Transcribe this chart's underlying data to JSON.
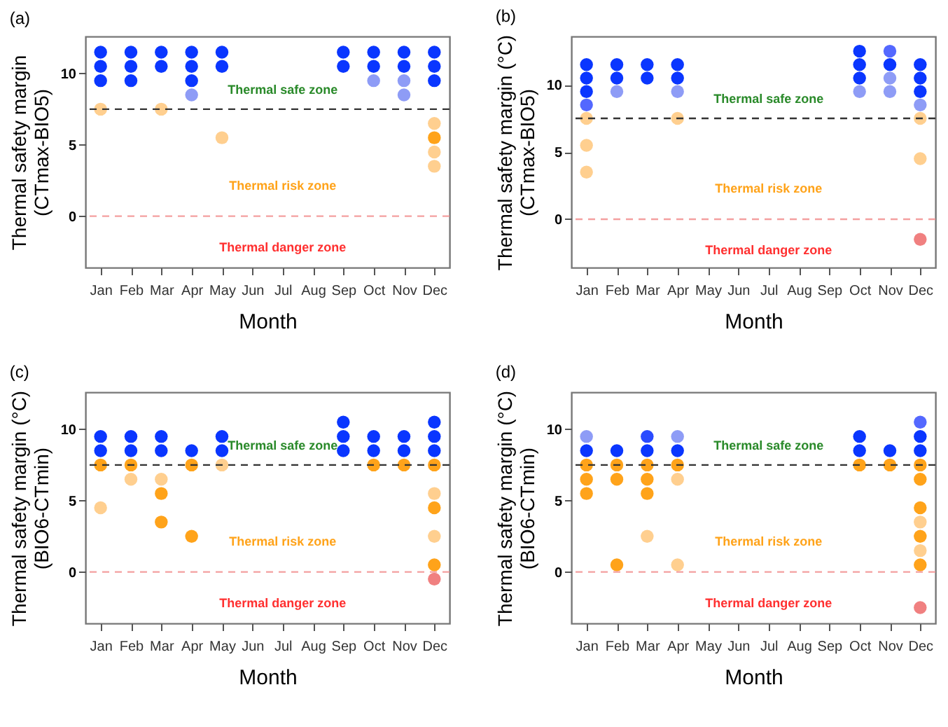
{
  "chart_data": [
    {
      "type": "scatter",
      "title": "(a)",
      "xlabel": "Month",
      "ylabel": "Thermal safety margin\n(CTmax-BIO5)",
      "categories": [
        "Jan",
        "Feb",
        "Mar",
        "Apr",
        "May",
        "Jun",
        "Jul",
        "Aug",
        "Sep",
        "Oct",
        "Nov",
        "Dec"
      ],
      "ylim": [
        -3.6,
        12.6
      ],
      "yticks": [
        0,
        5,
        10
      ],
      "grid": false,
      "marker": "circle",
      "series": [
        {
          "color": "#0a36ff",
          "x": [
            "Jan",
            "Jan",
            "Jan",
            "Feb",
            "Feb",
            "Feb",
            "Mar",
            "Mar",
            "Apr",
            "Apr",
            "Apr",
            "May",
            "May",
            "Sep",
            "Sep",
            "Oct",
            "Oct",
            "Nov",
            "Nov",
            "Dec",
            "Dec",
            "Dec"
          ],
          "values": [
            11.5,
            10.5,
            9.5,
            11.5,
            10.5,
            9.5,
            11.5,
            10.5,
            11.5,
            10.5,
            9.5,
            11.5,
            10.5,
            11.5,
            10.5,
            11.5,
            10.5,
            11.5,
            10.5,
            11.5,
            10.5,
            9.5
          ]
        },
        {
          "color": "#8e9cf6",
          "x": [
            "Apr",
            "Oct",
            "Nov",
            "Nov"
          ],
          "values": [
            8.5,
            9.5,
            9.5,
            8.5
          ]
        },
        {
          "color": "#ffa31a",
          "x": [
            "Dec"
          ],
          "values": [
            5.5
          ]
        },
        {
          "color": "#ffcf8f",
          "x": [
            "Jan",
            "Mar",
            "May",
            "Dec",
            "Dec",
            "Dec"
          ],
          "values": [
            7.5,
            7.5,
            5.5,
            6.5,
            4.5,
            3.5
          ]
        }
      ],
      "ref_lines": [
        {
          "axis": "y",
          "value": 7.5,
          "color": "#333333",
          "line_style": "dashed"
        },
        {
          "axis": "y",
          "value": 0,
          "color": "#f4a0a0",
          "line_style": "dashed"
        }
      ],
      "annotations": [
        "Thermal safe zone",
        "Thermal risk zone",
        "Thermal danger zone"
      ]
    },
    {
      "type": "scatter",
      "title": "(b)",
      "xlabel": "Month",
      "ylabel": "Thermal safety margin (°C)\n(CTmax-BIO5)",
      "categories": [
        "Jan",
        "Feb",
        "Mar",
        "Apr",
        "May",
        "Jun",
        "Jul",
        "Aug",
        "Sep",
        "Oct",
        "Nov",
        "Dec"
      ],
      "ylim": [
        -3.6,
        13.6
      ],
      "yticks": [
        0,
        5,
        10
      ],
      "grid": false,
      "marker": "circle",
      "series": [
        {
          "color": "#0a36ff",
          "x": [
            "Jan",
            "Jan",
            "Jan",
            "Feb",
            "Feb",
            "Mar",
            "Mar",
            "Apr",
            "Apr",
            "Oct",
            "Oct",
            "Oct",
            "Nov",
            "Dec",
            "Dec",
            "Dec"
          ],
          "values": [
            11.5,
            10.5,
            9.5,
            11.5,
            10.5,
            11.5,
            10.5,
            11.5,
            10.5,
            12.5,
            11.5,
            10.5,
            11.5,
            11.5,
            10.5,
            9.5
          ]
        },
        {
          "color": "#5468ff",
          "x": [
            "Jan",
            "Nov"
          ],
          "values": [
            8.5,
            12.5
          ]
        },
        {
          "color": "#8e9cf6",
          "x": [
            "Feb",
            "Apr",
            "Oct",
            "Nov",
            "Nov",
            "Dec"
          ],
          "values": [
            9.5,
            9.5,
            9.5,
            10.5,
            9.5,
            8.5
          ]
        },
        {
          "color": "#ffcf8f",
          "x": [
            "Jan",
            "Jan",
            "Jan",
            "Apr",
            "Dec",
            "Dec"
          ],
          "values": [
            7.5,
            5.5,
            3.5,
            7.5,
            7.5,
            4.5
          ]
        },
        {
          "color": "#f08080",
          "x": [
            "Dec"
          ],
          "values": [
            -1.5
          ]
        }
      ],
      "ref_lines": [
        {
          "axis": "y",
          "value": 7.5,
          "color": "#333333",
          "line_style": "dashed"
        },
        {
          "axis": "y",
          "value": 0,
          "color": "#f4a0a0",
          "line_style": "dashed"
        }
      ],
      "annotations": [
        "Thermal safe zone",
        "Thermal risk zone",
        "Thermal danger zone"
      ]
    },
    {
      "type": "scatter",
      "title": "(c)",
      "xlabel": "Month",
      "ylabel": "Thermal safety margin (°C)\n(BIO6-CTmin)",
      "categories": [
        "Jan",
        "Feb",
        "Mar",
        "Apr",
        "May",
        "Jun",
        "Jul",
        "Aug",
        "Sep",
        "Oct",
        "Nov",
        "Dec"
      ],
      "ylim": [
        -3.6,
        12.6
      ],
      "yticks": [
        0,
        5,
        10
      ],
      "grid": false,
      "marker": "circle",
      "series": [
        {
          "color": "#0a36ff",
          "x": [
            "Jan",
            "Jan",
            "Feb",
            "Feb",
            "Mar",
            "Mar",
            "Apr",
            "May",
            "May",
            "Sep",
            "Sep",
            "Sep",
            "Oct",
            "Oct",
            "Nov",
            "Nov",
            "Dec",
            "Dec",
            "Dec"
          ],
          "values": [
            9.5,
            8.5,
            9.5,
            8.5,
            9.5,
            8.5,
            8.5,
            9.5,
            8.5,
            10.5,
            9.5,
            8.5,
            9.5,
            8.5,
            9.5,
            8.5,
            10.5,
            9.5,
            8.5
          ]
        },
        {
          "color": "#ffa31a",
          "x": [
            "Jan",
            "Feb",
            "Mar",
            "Mar",
            "Apr",
            "Apr",
            "Oct",
            "Nov",
            "Dec",
            "Dec",
            "Dec"
          ],
          "values": [
            7.5,
            7.5,
            5.5,
            3.5,
            7.5,
            2.5,
            7.5,
            7.5,
            7.5,
            4.5,
            0.5
          ]
        },
        {
          "color": "#ffcf8f",
          "x": [
            "Jan",
            "Feb",
            "Mar",
            "May",
            "Dec",
            "Dec"
          ],
          "values": [
            4.5,
            6.5,
            6.5,
            7.5,
            5.5,
            2.5
          ]
        },
        {
          "color": "#f08080",
          "x": [
            "Dec"
          ],
          "values": [
            -0.5
          ]
        }
      ],
      "ref_lines": [
        {
          "axis": "y",
          "value": 7.5,
          "color": "#333333",
          "line_style": "dashed"
        },
        {
          "axis": "y",
          "value": 0,
          "color": "#f4a0a0",
          "line_style": "dashed"
        }
      ],
      "annotations": [
        "Thermal safe zone",
        "Thermal risk zone",
        "Thermal danger zone"
      ]
    },
    {
      "type": "scatter",
      "title": "(d)",
      "xlabel": "Month",
      "ylabel": "Thermal safety margin (°C)\n(BIO6-CTmin)",
      "categories": [
        "Jan",
        "Feb",
        "Mar",
        "Apr",
        "May",
        "Jun",
        "Jul",
        "Aug",
        "Sep",
        "Oct",
        "Nov",
        "Dec"
      ],
      "ylim": [
        -3.6,
        12.6
      ],
      "yticks": [
        0,
        5,
        10
      ],
      "grid": false,
      "marker": "circle",
      "series": [
        {
          "color": "#0a36ff",
          "x": [
            "Jan",
            "Feb",
            "Mar",
            "Apr",
            "Oct",
            "Oct",
            "Nov",
            "Dec",
            "Dec"
          ],
          "values": [
            8.5,
            8.5,
            8.5,
            8.5,
            9.5,
            8.5,
            8.5,
            9.5,
            8.5
          ]
        },
        {
          "color": "#2a4bff",
          "x": [
            "Mar"
          ],
          "values": [
            9.5
          ]
        },
        {
          "color": "#5468ff",
          "x": [
            "Dec"
          ],
          "values": [
            10.5
          ]
        },
        {
          "color": "#8e9cf6",
          "x": [
            "Jan",
            "Apr"
          ],
          "values": [
            9.5,
            9.5
          ]
        },
        {
          "color": "#ffa31a",
          "x": [
            "Jan",
            "Jan",
            "Jan",
            "Feb",
            "Feb",
            "Feb",
            "Mar",
            "Mar",
            "Mar",
            "Apr",
            "Oct",
            "Nov",
            "Dec",
            "Dec",
            "Dec",
            "Dec",
            "Dec"
          ],
          "values": [
            7.5,
            6.5,
            5.5,
            7.5,
            6.5,
            0.5,
            7.5,
            6.5,
            5.5,
            7.5,
            7.5,
            7.5,
            7.5,
            6.5,
            4.5,
            2.5,
            0.5
          ]
        },
        {
          "color": "#ffcf8f",
          "x": [
            "Mar",
            "Apr",
            "Apr",
            "Dec",
            "Dec"
          ],
          "values": [
            2.5,
            6.5,
            0.5,
            3.5,
            1.5
          ]
        },
        {
          "color": "#f08080",
          "x": [
            "Dec"
          ],
          "values": [
            -2.5
          ]
        }
      ],
      "ref_lines": [
        {
          "axis": "y",
          "value": 7.5,
          "color": "#333333",
          "line_style": "dashed"
        },
        {
          "axis": "y",
          "value": 0,
          "color": "#f4a0a0",
          "line_style": "dashed"
        }
      ],
      "annotations": [
        "Thermal safe zone",
        "Thermal risk zone",
        "Thermal danger zone"
      ]
    }
  ]
}
